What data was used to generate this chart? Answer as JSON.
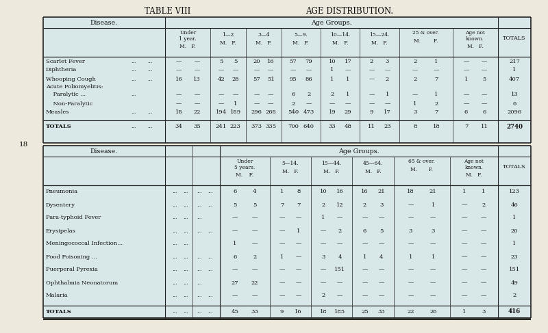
{
  "title_left": "TABLE VIII",
  "title_right": "AGE DISTRIBUTION.",
  "bg_color": "#ede9dc",
  "table_bg": "#d8e8e8",
  "text_color": "#111111",
  "table1_header_age": [
    "Under\n1 year.",
    "1—2",
    "3—4",
    "5—9.",
    "10—14.",
    "15—24.",
    "25 & over.",
    "Age not\nknown.",
    "TOTALS"
  ],
  "table1_mf": [
    "M.   F.",
    "M.   F.",
    "M.   F.",
    "M.   F.",
    "M.   F.",
    "M.   F.",
    "M.        F.",
    "M.    F.",
    ""
  ],
  "table1_rows": [
    [
      "Scarlet Fever",
      "...",
      "...",
      "—",
      "—",
      "5",
      "5",
      "20",
      "16",
      "57",
      "79",
      "10",
      "17",
      "2",
      "3",
      "2",
      "1",
      "—",
      "—",
      "217"
    ],
    [
      "Diphtheria",
      "...",
      "...",
      "—",
      "—",
      "—",
      "—",
      "—",
      "—",
      "—",
      "—",
      "1",
      "—",
      "—",
      "—",
      "—",
      "—",
      "—",
      "—",
      "1"
    ],
    [
      "Whooping Cough",
      "...",
      "...",
      "16",
      "13",
      "42",
      "28",
      "57",
      "51",
      "95",
      "86",
      "1",
      "1",
      "—",
      "2",
      "2",
      "7",
      "1",
      "5",
      "407"
    ],
    [
      "Acute Poliomyelitis:",
      "",
      "",
      "",
      "",
      "",
      "",
      "",
      "",
      "",
      "",
      "",
      "",
      "",
      "",
      "",
      "",
      "",
      "",
      ""
    ],
    [
      "    Paralytic ...",
      "...",
      "",
      "—",
      "—",
      "—",
      "—",
      "—",
      "—",
      "6",
      "2",
      "2",
      "1",
      "—",
      "1",
      "—",
      "1",
      "—",
      "—",
      "13"
    ],
    [
      "    Non-Paralytic",
      "..+",
      "",
      "—",
      "—",
      "—",
      "1",
      "—",
      "—",
      "2",
      "—",
      "—",
      "—",
      "—",
      "—",
      "1",
      "2",
      "—",
      "—",
      "6"
    ],
    [
      "Measles",
      "...",
      "...",
      "18",
      "22",
      "194",
      "189",
      "296",
      "268",
      "540",
      "473",
      "19",
      "29",
      "9",
      "17",
      "3",
      "7",
      "6",
      "6",
      "2096"
    ],
    [
      "TOTALS",
      "...",
      "...",
      "34",
      "35",
      "241",
      "223",
      "373",
      "335",
      "700",
      "640",
      "33",
      "48",
      "11",
      "23",
      "8",
      "18",
      "7",
      "11",
      "2740"
    ]
  ],
  "table2_header_age": [
    "Under\n5 years.",
    "5—14.",
    "15—44.",
    "45—64.",
    "65 & over.",
    "Age not\nknown.",
    "TOTALS"
  ],
  "table2_mf": [
    "M.    F.",
    "M.   F.",
    "M.   F.",
    "M.   F.",
    "M.       F.",
    "M.   F.",
    ""
  ],
  "table2_rows": [
    [
      "Pneumonia",
      "...",
      "...",
      "...",
      "...",
      "6",
      "4",
      "1",
      "8",
      "10",
      "16",
      "16",
      "21",
      "18",
      "21",
      "1",
      "1",
      "123"
    ],
    [
      "Dysentery",
      "...",
      "...",
      "...",
      "...",
      "5",
      "5",
      "7",
      "7",
      "2",
      "12",
      "2",
      "3",
      "—",
      "1",
      "—",
      "2",
      "46"
    ],
    [
      "Para-typhoid Fever",
      "...",
      "...",
      "...",
      "",
      "—",
      "—",
      "—",
      "—",
      "1",
      "—",
      "—",
      "—",
      "—",
      "—",
      "—",
      "—",
      "1"
    ],
    [
      "Erysipelas",
      "...",
      "...",
      "...",
      "...",
      "—",
      "—",
      "—",
      "1",
      "—",
      "2",
      "6",
      "5",
      "3",
      "3",
      "—",
      "—",
      "20"
    ],
    [
      "Meningococcal Infection...",
      "...",
      "...",
      "",
      "",
      "1",
      "—",
      "—",
      "—",
      "—",
      "—",
      "—",
      "—",
      "—",
      "—",
      "—",
      "—",
      "1"
    ],
    [
      "Food Poisoning ...",
      "...",
      "...",
      "...",
      "...",
      "6",
      "2",
      "1",
      "—",
      "3",
      "4",
      "1",
      "4",
      "1",
      "1",
      "—",
      "—",
      "23"
    ],
    [
      "Puerperal Pyrexia",
      "...",
      "...",
      "...",
      "...",
      "—",
      "—",
      "—",
      "—",
      "—",
      "151",
      "—",
      "—",
      "—",
      "—",
      "—",
      "—",
      "151"
    ],
    [
      "Ophthalmia Neonatorum",
      "...",
      "...",
      "...",
      "",
      "27",
      "22",
      "—",
      "—",
      "—",
      "—",
      "—",
      "—",
      "—",
      "—",
      "—",
      "—",
      "49"
    ],
    [
      "Malaria",
      "...",
      "...",
      "...",
      "...",
      "—",
      "—",
      "—",
      "—",
      "2",
      "—",
      "—",
      "—",
      "—",
      "—",
      "—",
      "—",
      "2"
    ],
    [
      "TOTALS",
      "...",
      "...",
      "...",
      "...",
      "45",
      "33",
      "9",
      "16",
      "18",
      "185",
      "25",
      "33",
      "22",
      "26",
      "1",
      "3",
      "416"
    ]
  ]
}
